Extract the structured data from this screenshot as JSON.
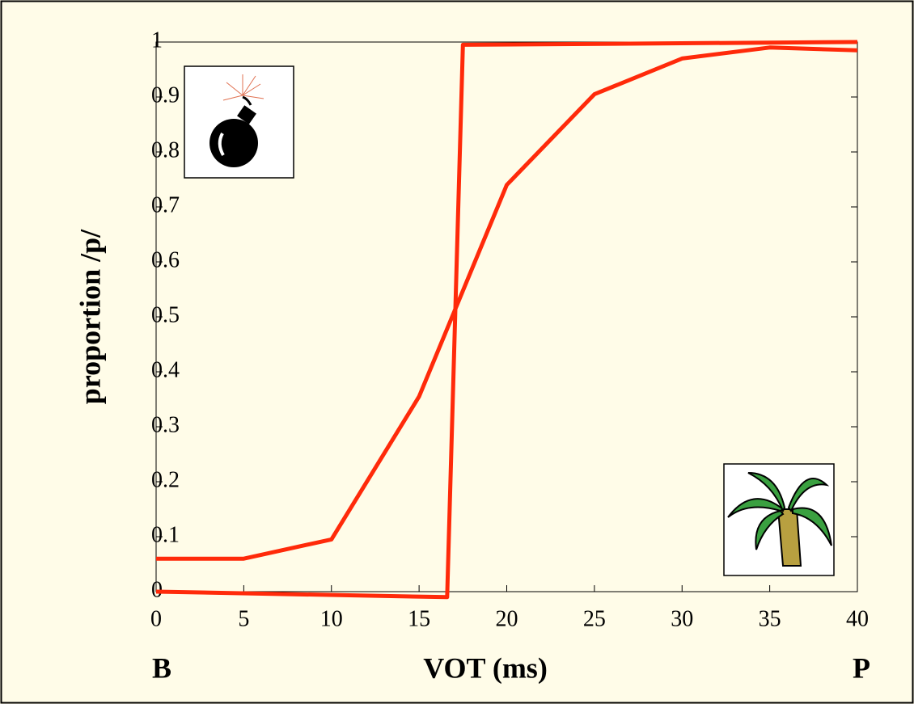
{
  "chart_data": {
    "type": "line",
    "xlabel": "VOT (ms)",
    "ylabel": "proportion /p/",
    "x_end_labels": {
      "left": "B",
      "right": "P"
    },
    "xlim": [
      0,
      40
    ],
    "xticks": [
      0,
      5,
      10,
      15,
      20,
      25,
      30,
      35,
      40
    ],
    "ylim": [
      0,
      1
    ],
    "yticks": [
      0,
      0.1,
      0.2,
      0.3,
      0.4,
      0.5,
      0.6,
      0.7,
      0.8,
      0.9,
      1
    ],
    "grid": false,
    "series": [
      {
        "color": "#ff2a0a",
        "x": [
          0,
          5,
          10,
          15,
          20,
          25,
          30,
          35,
          40
        ],
        "values": [
          0.06,
          0.06,
          0.095,
          0.355,
          0.74,
          0.905,
          0.97,
          0.99,
          0.985
        ]
      },
      {
        "color": "#ff2a0a",
        "x": [
          0,
          16.6,
          17.5,
          40
        ],
        "values": [
          0,
          -0.01,
          0.995,
          1.0
        ]
      }
    ]
  }
}
